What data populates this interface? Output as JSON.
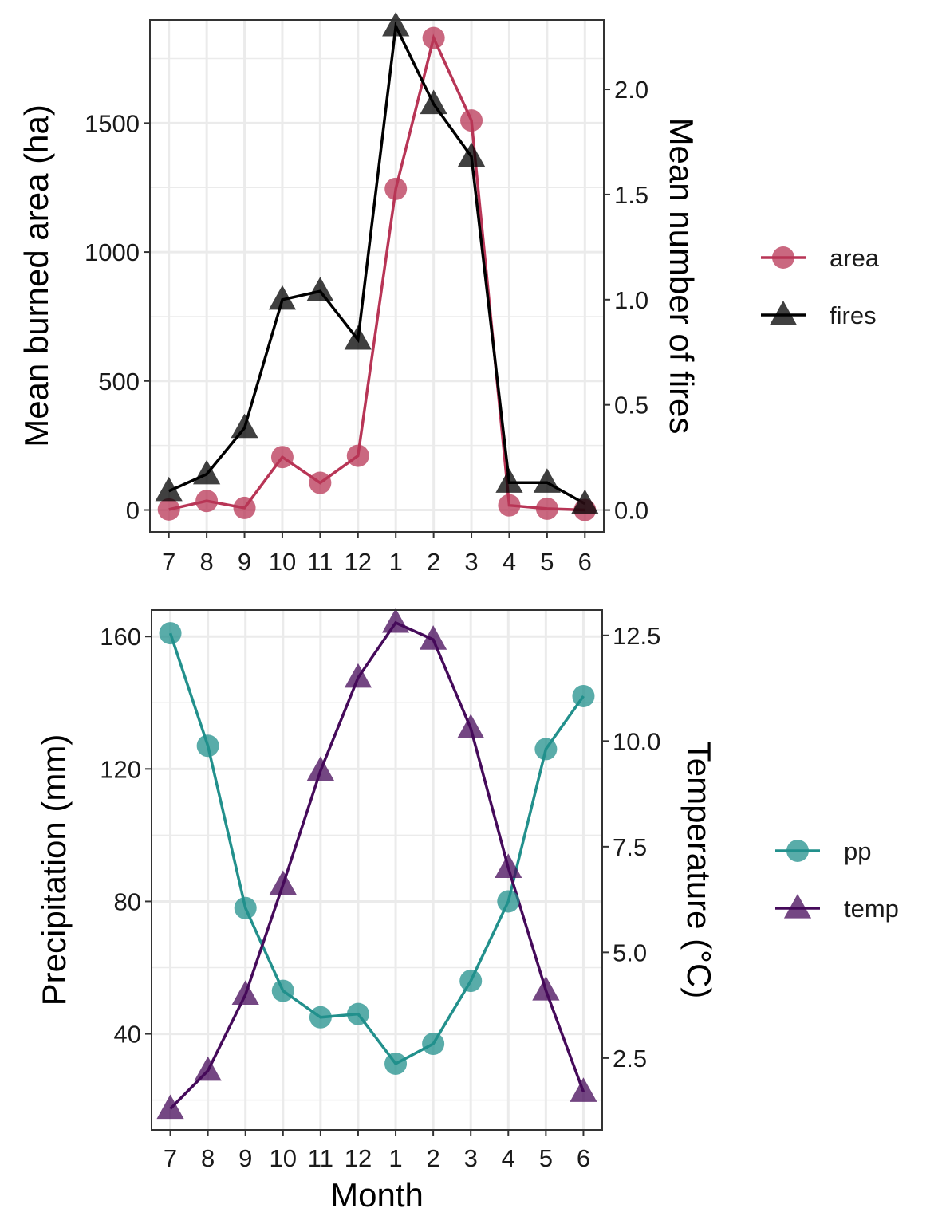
{
  "chart_data": [
    {
      "type": "line",
      "categories": [
        "7",
        "8",
        "9",
        "10",
        "11",
        "12",
        "1",
        "2",
        "3",
        "4",
        "5",
        "6"
      ],
      "xlabel": "",
      "ylabel": "Mean burned area (ha)",
      "y2label": "Mean number of fires",
      "ylim": [
        -85,
        1900
      ],
      "y2lim": [
        -0.104,
        2.33
      ],
      "yticks": [
        "0",
        "500",
        "1000",
        "1500"
      ],
      "y2ticks": [
        "0.0",
        "0.5",
        "1.0",
        "1.5",
        "2.0"
      ],
      "grid": true,
      "legend_position": "right",
      "series": [
        {
          "name": "area",
          "axis": "left",
          "marker": "circle",
          "color": "#b83556",
          "values": [
            2,
            35,
            8,
            205,
            105,
            210,
            1245,
            1830,
            1510,
            18,
            5,
            0
          ]
        },
        {
          "name": "fires",
          "axis": "right",
          "marker": "triangle",
          "color": "#000000",
          "values": [
            0.09,
            0.17,
            0.39,
            1.0,
            1.04,
            0.81,
            2.3,
            1.93,
            1.68,
            0.13,
            0.13,
            0.03
          ]
        }
      ]
    },
    {
      "type": "line",
      "categories": [
        "7",
        "8",
        "9",
        "10",
        "11",
        "12",
        "1",
        "2",
        "3",
        "4",
        "5",
        "6"
      ],
      "xlabel": "Month",
      "ylabel": "Precipitation (mm)",
      "y2label": "Temperature (°C)",
      "ylim": [
        11,
        168
      ],
      "y2lim": [
        0.8,
        13.1
      ],
      "yticks": [
        "40",
        "80",
        "120",
        "160"
      ],
      "y2ticks": [
        "2.5",
        "5.0",
        "7.5",
        "10.0",
        "12.5"
      ],
      "grid": true,
      "legend_position": "right",
      "series": [
        {
          "name": "pp",
          "axis": "left",
          "marker": "circle",
          "color": "#22908c",
          "values": [
            161,
            127,
            78,
            53,
            45,
            46,
            31,
            37,
            56,
            80,
            126,
            142
          ]
        },
        {
          "name": "temp",
          "axis": "right",
          "marker": "triangle",
          "color": "#450a5a",
          "values": [
            1.3,
            2.2,
            4.0,
            6.6,
            9.3,
            11.5,
            12.8,
            12.4,
            10.3,
            7.0,
            4.1,
            1.7
          ]
        }
      ]
    }
  ]
}
